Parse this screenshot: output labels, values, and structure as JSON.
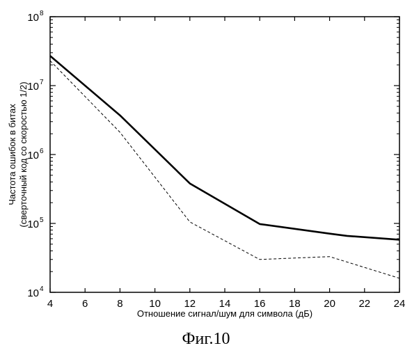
{
  "chart_data": {
    "type": "line",
    "title": "",
    "xlabel": "Отношение сигнал/шум для символа (дБ)",
    "ylabel_lines": [
      "Частота ошибок в битах",
      "(сверточный код со скоростью 1/2)"
    ],
    "caption": "Фиг.10",
    "xlim": [
      4,
      24
    ],
    "ylim": [
      10000,
      100000000
    ],
    "y_scale": "log",
    "grid": false,
    "legend": "none",
    "x_ticks": [
      4,
      6,
      8,
      10,
      12,
      14,
      16,
      18,
      20,
      22,
      24
    ],
    "y_ticks": [
      {
        "base": "10",
        "exp": "4"
      },
      {
        "base": "10",
        "exp": "5"
      },
      {
        "base": "10",
        "exp": "6"
      },
      {
        "base": "10",
        "exp": "7"
      },
      {
        "base": "10",
        "exp": "8"
      }
    ],
    "series": [
      {
        "style": "solid-thick",
        "points": [
          [
            4,
            27000000
          ],
          [
            8,
            3700000
          ],
          [
            12,
            380000
          ],
          [
            16,
            98000
          ],
          [
            20,
            71000
          ],
          [
            21,
            66000
          ],
          [
            24,
            58000
          ]
        ]
      },
      {
        "style": "dashed-thin",
        "points": [
          [
            4,
            23000000
          ],
          [
            8,
            2100000
          ],
          [
            12,
            105000
          ],
          [
            16,
            30000
          ],
          [
            20,
            33000
          ],
          [
            24,
            16000
          ]
        ]
      }
    ]
  }
}
